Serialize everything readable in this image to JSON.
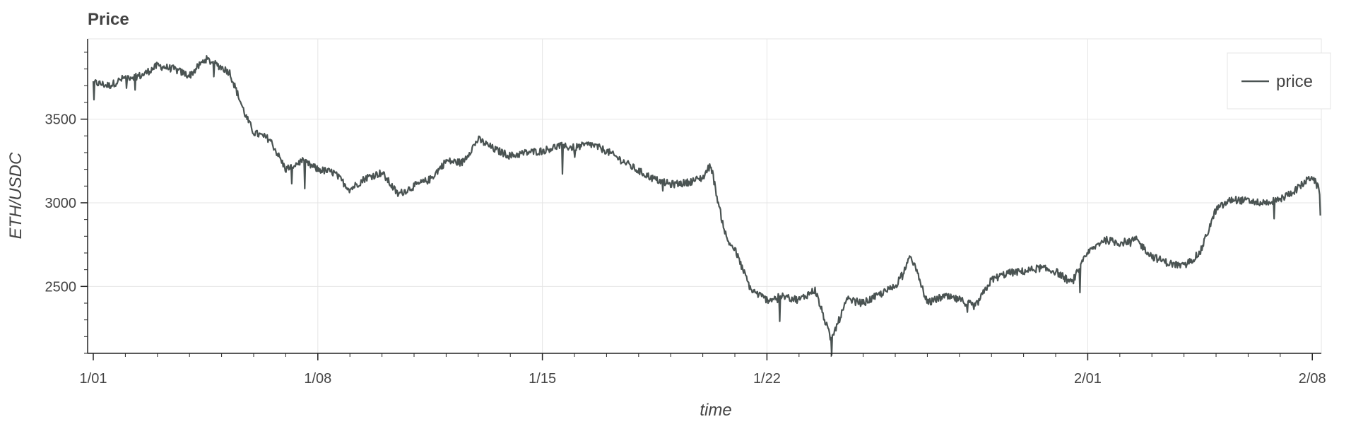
{
  "chart_data": {
    "type": "line",
    "title": "Price",
    "xlabel": "time",
    "ylabel": "ETH/USDC",
    "x_tick_labels": [
      "1/01",
      "1/08",
      "1/15",
      "1/22",
      "2/01",
      "2/08"
    ],
    "y_tick_labels": [
      "2500",
      "3000",
      "3500"
    ],
    "y_ticks": [
      2500,
      3000,
      3500
    ],
    "ylim": [
      2100,
      3980
    ],
    "xlim": [
      "2022-01-01",
      "2022-02-08"
    ],
    "grid": true,
    "legend_position": "top-right",
    "series": [
      {
        "name": "price",
        "color": "#4a5352",
        "x": [
          "2022-01-01T00:00",
          "2022-01-01T12:00",
          "2022-01-02T00:00",
          "2022-01-02T12:00",
          "2022-01-03T00:00",
          "2022-01-03T12:00",
          "2022-01-04T00:00",
          "2022-01-04T12:00",
          "2022-01-05T00:00",
          "2022-01-05T06:00",
          "2022-01-05T12:00",
          "2022-01-05T18:00",
          "2022-01-06T00:00",
          "2022-01-06T12:00",
          "2022-01-07T00:00",
          "2022-01-07T12:00",
          "2022-01-08T00:00",
          "2022-01-08T12:00",
          "2022-01-09T00:00",
          "2022-01-09T12:00",
          "2022-01-10T00:00",
          "2022-01-10T12:00",
          "2022-01-11T00:00",
          "2022-01-11T12:00",
          "2022-01-12T00:00",
          "2022-01-12T12:00",
          "2022-01-13T00:00",
          "2022-01-13T12:00",
          "2022-01-14T00:00",
          "2022-01-14T12:00",
          "2022-01-15T00:00",
          "2022-01-15T12:00",
          "2022-01-16T00:00",
          "2022-01-16T12:00",
          "2022-01-17T00:00",
          "2022-01-17T12:00",
          "2022-01-18T00:00",
          "2022-01-18T12:00",
          "2022-01-19T00:00",
          "2022-01-19T12:00",
          "2022-01-20T00:00",
          "2022-01-20T06:00",
          "2022-01-20T12:00",
          "2022-01-20T18:00",
          "2022-01-21T00:00",
          "2022-01-21T12:00",
          "2022-01-22T00:00",
          "2022-01-22T12:00",
          "2022-01-23T00:00",
          "2022-01-23T12:00",
          "2022-01-24T00:00",
          "2022-01-24T12:00",
          "2022-01-25T00:00",
          "2022-01-25T12:00",
          "2022-01-26T00:00",
          "2022-01-26T12:00",
          "2022-01-27T00:00",
          "2022-01-27T12:00",
          "2022-01-28T00:00",
          "2022-01-28T12:00",
          "2022-01-29T00:00",
          "2022-01-29T12:00",
          "2022-01-30T00:00",
          "2022-01-30T12:00",
          "2022-01-31T00:00",
          "2022-01-31T12:00",
          "2022-02-01T00:00",
          "2022-02-01T12:00",
          "2022-02-02T00:00",
          "2022-02-02T12:00",
          "2022-02-03T00:00",
          "2022-02-03T12:00",
          "2022-02-04T00:00",
          "2022-02-04T12:00",
          "2022-02-05T00:00",
          "2022-02-05T12:00",
          "2022-02-06T00:00",
          "2022-02-06T12:00",
          "2022-02-07T00:00",
          "2022-02-07T12:00",
          "2022-02-08T00:00",
          "2022-02-08T06:00"
        ],
        "values": [
          3720,
          3700,
          3750,
          3760,
          3820,
          3800,
          3760,
          3860,
          3810,
          3780,
          3650,
          3520,
          3420,
          3380,
          3200,
          3250,
          3200,
          3180,
          3080,
          3150,
          3180,
          3050,
          3100,
          3140,
          3250,
          3240,
          3380,
          3320,
          3280,
          3300,
          3310,
          3340,
          3330,
          3350,
          3310,
          3250,
          3190,
          3140,
          3110,
          3120,
          3150,
          3230,
          2980,
          2780,
          2720,
          2480,
          2420,
          2440,
          2420,
          2480,
          2180,
          2420,
          2400,
          2450,
          2500,
          2680,
          2400,
          2440,
          2420,
          2380,
          2540,
          2580,
          2590,
          2610,
          2590,
          2520,
          2700,
          2780,
          2760,
          2780,
          2680,
          2640,
          2620,
          2700,
          2960,
          3020,
          3010,
          3000,
          3020,
          3080,
          3160,
          3060
        ]
      }
    ]
  }
}
